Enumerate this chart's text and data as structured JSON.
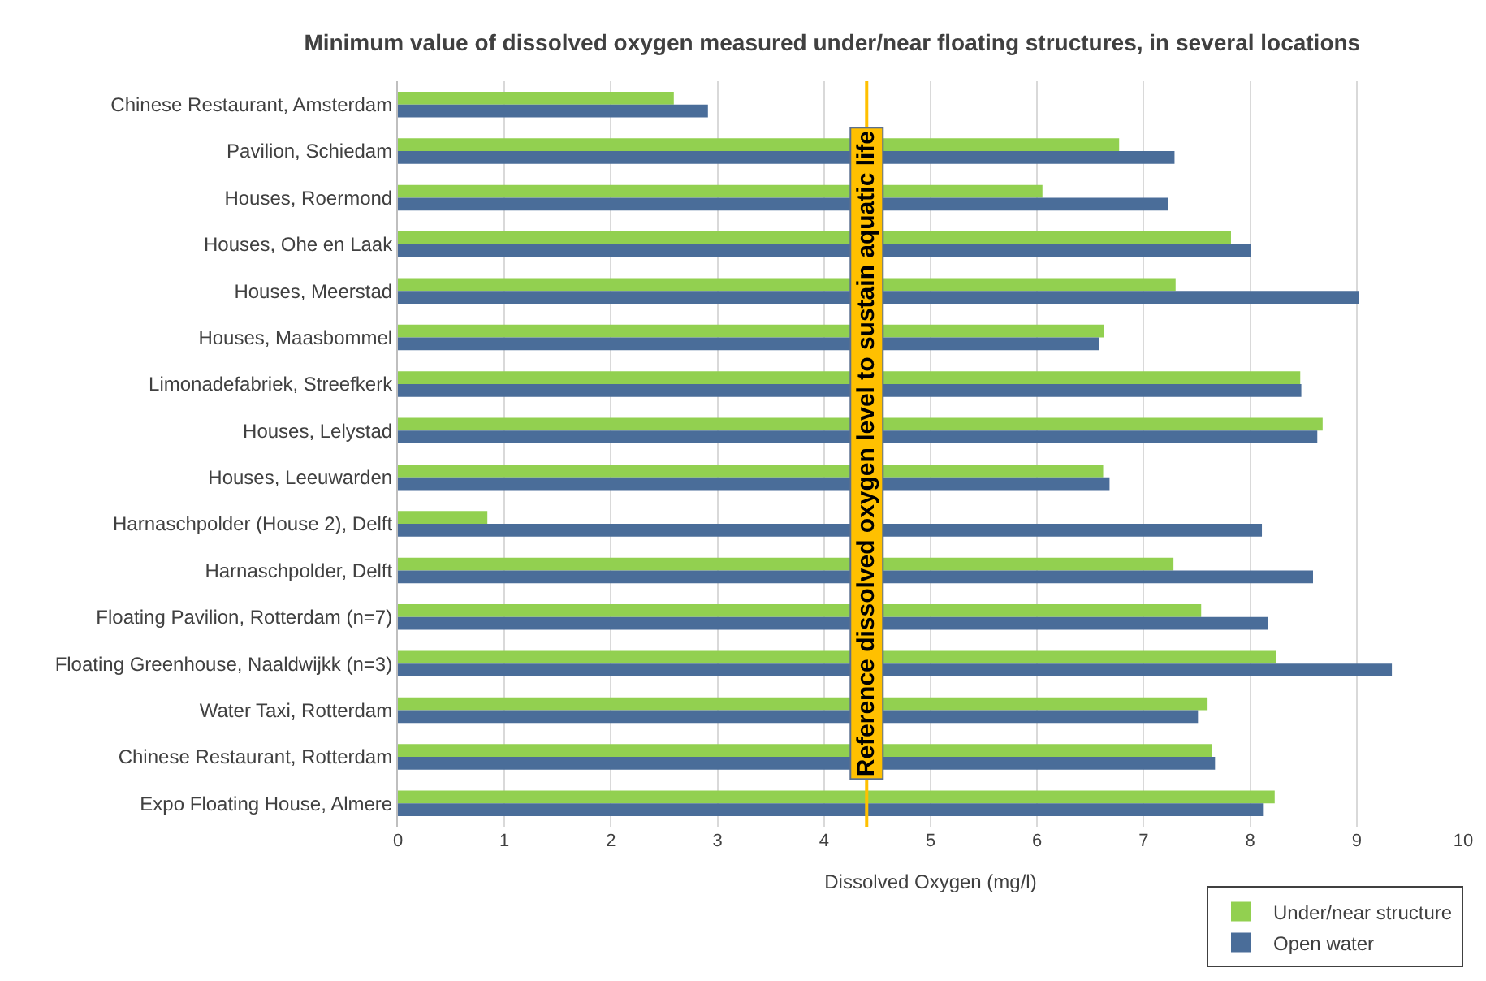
{
  "chart_data": {
    "type": "bar",
    "orientation": "horizontal",
    "title": "Minimum value of dissolved oxygen measured under/near floating structures, in several locations",
    "xlabel": "Dissolved Oxygen (mg/l)",
    "categories": [
      "Chinese Restaurant, Amsterdam",
      "Pavilion, Schiedam",
      "Houses, Roermond",
      "Houses, Ohe en Laak",
      "Houses, Meerstad",
      "Houses, Maasbommel",
      "Limonadefabriek, Streefkerk",
      "Houses, Lelystad",
      "Houses, Leeuwarden",
      "Harnaschpolder (House 2), Delft",
      "Harnaschpolder, Delft",
      "Floating Pavilion, Rotterdam (n=7)",
      "Floating Greenhouse, Naaldwijkk (n=3)",
      "Water Taxi, Rotterdam",
      "Chinese Restaurant, Rotterdam",
      "Expo Floating House, Almere"
    ],
    "series": [
      {
        "name": "Under/near structure",
        "color": "#92d050",
        "values": [
          2.59,
          6.77,
          6.05,
          7.82,
          7.3,
          6.63,
          8.47,
          8.68,
          6.62,
          0.84,
          7.28,
          7.54,
          8.24,
          7.6,
          7.64,
          8.23
        ]
      },
      {
        "name": "Open water",
        "color": "#4a6d99",
        "values": [
          2.91,
          7.29,
          7.23,
          8.01,
          9.02,
          6.58,
          8.48,
          8.63,
          6.68,
          8.11,
          8.59,
          8.17,
          9.33,
          7.51,
          7.67,
          8.12
        ]
      }
    ],
    "xlim": [
      0,
      10
    ],
    "xticks": [
      0,
      1,
      2,
      3,
      4,
      5,
      6,
      7,
      8,
      9,
      10
    ],
    "grid": "x",
    "legend": "bottom right",
    "ref_lines": [
      {
        "axis": "x",
        "value": 4.4,
        "label": "Reference dissolved oxygen level to sustain aquatic life",
        "color": "#ffc000"
      }
    ]
  }
}
